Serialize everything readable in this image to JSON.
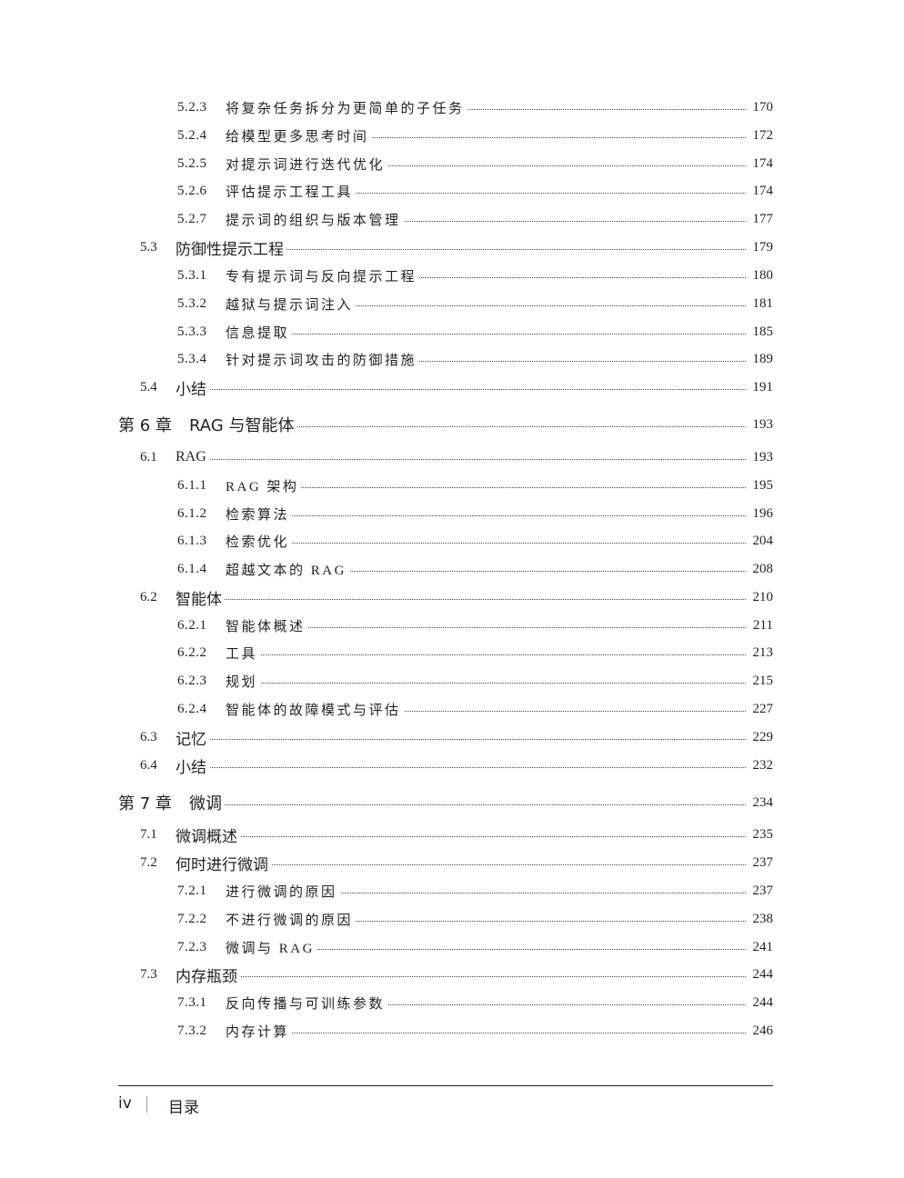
{
  "entries": [
    {
      "level": 3,
      "num": "5.2.3",
      "title": "将复杂任务拆分为更简单的子任务",
      "page": "170"
    },
    {
      "level": 3,
      "num": "5.2.4",
      "title": "给模型更多思考时间",
      "page": "172"
    },
    {
      "level": 3,
      "num": "5.2.5",
      "title": "对提示词进行迭代优化",
      "page": "174"
    },
    {
      "level": 3,
      "num": "5.2.6",
      "title": "评估提示工程工具",
      "page": "174"
    },
    {
      "level": 3,
      "num": "5.2.7",
      "title": "提示词的组织与版本管理",
      "page": "177"
    },
    {
      "level": 2,
      "num": "5.3",
      "title": "防御性提示工程",
      "page": "179"
    },
    {
      "level": 3,
      "num": "5.3.1",
      "title": "专有提示词与反向提示工程",
      "page": "180"
    },
    {
      "level": 3,
      "num": "5.3.2",
      "title": "越狱与提示词注入",
      "page": "181"
    },
    {
      "level": 3,
      "num": "5.3.3",
      "title": "信息提取",
      "page": "185"
    },
    {
      "level": 3,
      "num": "5.3.4",
      "title": "针对提示词攻击的防御措施",
      "page": "189"
    },
    {
      "level": 2,
      "num": "5.4",
      "title": "小结",
      "page": "191"
    },
    {
      "level": 1,
      "num": "第 6 章",
      "title": "RAG 与智能体",
      "page": "193"
    },
    {
      "level": 2,
      "num": "6.1",
      "title": "RAG",
      "page": "193"
    },
    {
      "level": 3,
      "num": "6.1.1",
      "title": "RAG 架构",
      "page": "195"
    },
    {
      "level": 3,
      "num": "6.1.2",
      "title": "检索算法",
      "page": "196"
    },
    {
      "level": 3,
      "num": "6.1.3",
      "title": "检索优化",
      "page": "204"
    },
    {
      "level": 3,
      "num": "6.1.4",
      "title": "超越文本的 RAG",
      "page": "208"
    },
    {
      "level": 2,
      "num": "6.2",
      "title": "智能体",
      "page": "210"
    },
    {
      "level": 3,
      "num": "6.2.1",
      "title": "智能体概述",
      "page": "211"
    },
    {
      "level": 3,
      "num": "6.2.2",
      "title": "工具",
      "page": "213"
    },
    {
      "level": 3,
      "num": "6.2.3",
      "title": "规划",
      "page": "215"
    },
    {
      "level": 3,
      "num": "6.2.4",
      "title": "智能体的故障模式与评估",
      "page": "227"
    },
    {
      "level": 2,
      "num": "6.3",
      "title": "记忆",
      "page": "229"
    },
    {
      "level": 2,
      "num": "6.4",
      "title": "小结",
      "page": "232"
    },
    {
      "level": 1,
      "num": "第 7 章",
      "title": "微调",
      "page": "234"
    },
    {
      "level": 2,
      "num": "7.1",
      "title": "微调概述",
      "page": "235"
    },
    {
      "level": 2,
      "num": "7.2",
      "title": "何时进行微调",
      "page": "237"
    },
    {
      "level": 3,
      "num": "7.2.1",
      "title": "进行微调的原因",
      "page": "237"
    },
    {
      "level": 3,
      "num": "7.2.2",
      "title": "不进行微调的原因",
      "page": "238"
    },
    {
      "level": 3,
      "num": "7.2.3",
      "title": "微调与 RAG",
      "page": "241"
    },
    {
      "level": 2,
      "num": "7.3",
      "title": "内存瓶颈",
      "page": "244"
    },
    {
      "level": 3,
      "num": "7.3.1",
      "title": "反向传播与可训练参数",
      "page": "244"
    },
    {
      "level": 3,
      "num": "7.3.2",
      "title": "内存计算",
      "page": "246"
    }
  ],
  "footer": {
    "page_number": "iv",
    "section": "目录"
  }
}
